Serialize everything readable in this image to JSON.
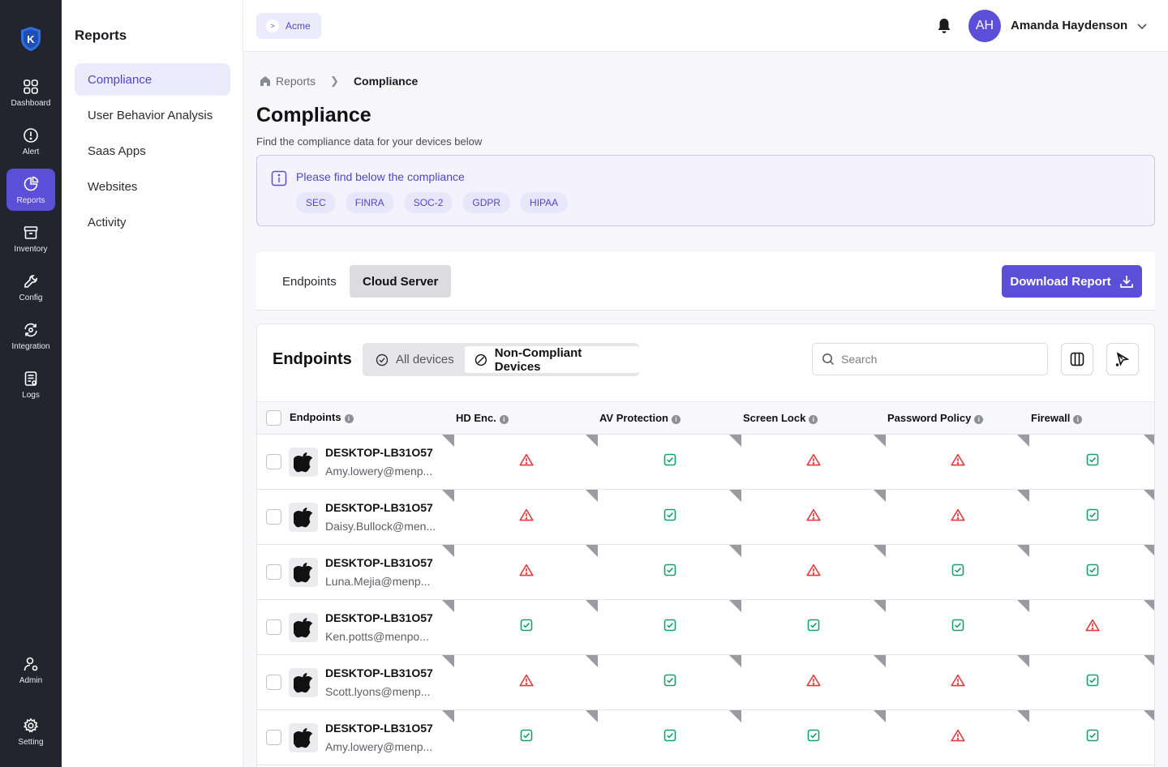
{
  "rail": {
    "items": [
      {
        "label": "Dashboard",
        "icon": "dashboard-icon"
      },
      {
        "label": "Alert",
        "icon": "alert-icon"
      },
      {
        "label": "Reports",
        "icon": "reports-icon"
      },
      {
        "label": "Inventory",
        "icon": "inventory-icon"
      },
      {
        "label": "Config",
        "icon": "config-icon"
      },
      {
        "label": "Integration",
        "icon": "integration-icon"
      },
      {
        "label": "Logs",
        "icon": "logs-icon"
      },
      {
        "label": "Admin",
        "icon": "admin-icon"
      },
      {
        "label": "Setting",
        "icon": "setting-icon"
      }
    ],
    "active": "Reports"
  },
  "subnav": {
    "title": "Reports",
    "items": [
      "Compliance",
      "User Behavior Analysis",
      "Saas Apps",
      "Websites",
      "Activity"
    ],
    "active": "Compliance"
  },
  "header": {
    "org": "Acme",
    "user_initials": "AH",
    "user_name": "Amanda Haydenson"
  },
  "breadcrumb": {
    "home": "Reports",
    "current": "Compliance"
  },
  "page": {
    "title": "Compliance",
    "subtitle": "Find the compliance data for your devices below"
  },
  "info": {
    "text": "Please find below the compliance",
    "chips": [
      "SEC",
      "FINRA",
      "SOC-2",
      "GDPR",
      "HIPAA"
    ]
  },
  "tabs": {
    "items": [
      "Endpoints",
      "Cloud Server"
    ],
    "active": "Cloud Server",
    "download_label": "Download Report"
  },
  "panel": {
    "title": "Endpoints",
    "filters": [
      "All devices",
      "Non-Compliant Devices"
    ],
    "active_filter": "Non-Compliant Devices",
    "search_placeholder": "Search"
  },
  "table": {
    "columns": [
      "Endpoints",
      "HD Enc.",
      "AV Protection",
      "Screen Lock",
      "Password Policy",
      "Firewall"
    ],
    "rows": [
      {
        "device": "DESKTOP-LB31O57",
        "user": "Amy.lowery@menp...",
        "status": [
          "fail",
          "pass",
          "fail",
          "fail",
          "pass"
        ]
      },
      {
        "device": "DESKTOP-LB31O57",
        "user": "Daisy.Bullock@men...",
        "status": [
          "fail",
          "pass",
          "fail",
          "fail",
          "pass"
        ]
      },
      {
        "device": "DESKTOP-LB31O57",
        "user": "Luna.Mejia@menp...",
        "status": [
          "fail",
          "pass",
          "fail",
          "pass",
          "pass"
        ]
      },
      {
        "device": "DESKTOP-LB31O57",
        "user": "Ken.potts@menpo...",
        "status": [
          "pass",
          "pass",
          "pass",
          "pass",
          "fail"
        ]
      },
      {
        "device": "DESKTOP-LB31O57",
        "user": "Scott.lyons@menp...",
        "status": [
          "fail",
          "pass",
          "fail",
          "fail",
          "pass"
        ]
      },
      {
        "device": "DESKTOP-LB31O57",
        "user": "Amy.lowery@menp...",
        "status": [
          "pass",
          "pass",
          "pass",
          "fail",
          "pass"
        ]
      }
    ]
  },
  "colors": {
    "accent": "#5b4fd8",
    "rail_bg": "#22252d",
    "pass": "#16a06a",
    "fail": "#e03a3a"
  }
}
